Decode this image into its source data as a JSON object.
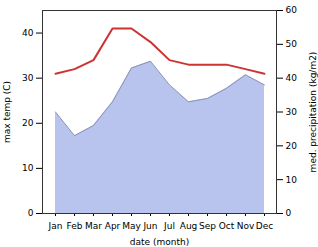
{
  "chart_data": {
    "type": "line",
    "categories": [
      "Jan",
      "Feb",
      "Mar",
      "Apr",
      "May",
      "Jun",
      "Jul",
      "Aug",
      "Sep",
      "Oct",
      "Nov",
      "Dec"
    ],
    "series": [
      {
        "type": "area",
        "axis": "y2",
        "color": "#b8c4ee",
        "values": [
          30,
          23,
          26,
          33,
          43,
          45,
          38,
          33,
          34,
          37,
          41,
          38
        ]
      },
      {
        "type": "line",
        "color": "#cc3333",
        "values": [
          31,
          32,
          34,
          41,
          41,
          38,
          34,
          33,
          33,
          33,
          32,
          31
        ]
      }
    ],
    "xlabel": "date (month)",
    "ylabel": "max temp (C)",
    "y2label": "med. precipitation (kg/m2)",
    "ylim": [
      0,
      45
    ],
    "yticks": [
      0,
      10,
      20,
      30,
      40
    ],
    "y2lim": [
      0,
      60
    ],
    "y2ticks": [
      0,
      10,
      20,
      30,
      40,
      50,
      60
    ]
  }
}
